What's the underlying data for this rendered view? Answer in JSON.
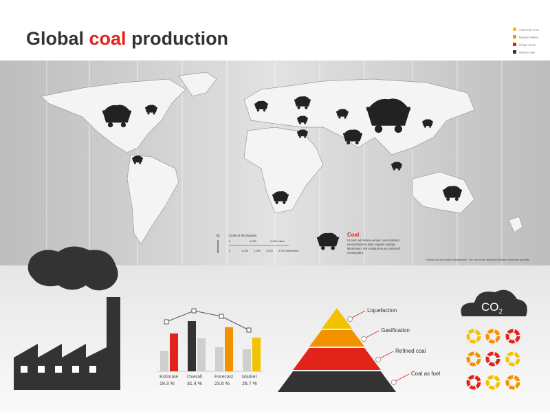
{
  "header": {
    "title": [
      "Global",
      "coal",
      "production"
    ],
    "legend": [
      {
        "color": "#f2c400",
        "label": "Class auto muer"
      },
      {
        "color": "#f39200",
        "label": "Request saltem"
      },
      {
        "color": "#e2231a",
        "label": "Integer ipsum"
      },
      {
        "color": "#333333",
        "label": "Aenean vitae"
      }
    ]
  },
  "map": {
    "north": "N",
    "scale_title": "Scale at the Equator",
    "miles_ticks": [
      "0",
      "1,000",
      "2,000 miles"
    ],
    "km_ticks": [
      "0",
      "1,000",
      "2,000",
      "3,000",
      "4,000 kilometers"
    ],
    "legend_title": "Coal",
    "legend_text": [
      "Ut enim ad minima veniam, quis nostrum",
      "exercitationem ullam corporis suscipit",
      "laboriosam, nisi ut aliquid ex ea commodi",
      "consequatur."
    ],
    "footnote": "Global coal production infographics. The size of the symbols illustrate production quantity."
  },
  "bar_chart": {
    "categories": [
      "Estimate",
      "Overall",
      "Forecast",
      "Market"
    ],
    "percent_labels": [
      "19.3 %",
      "31.4 %",
      "23.6 %",
      "26.7 %"
    ],
    "left_bars": [
      30,
      73,
      35,
      32
    ],
    "left_colors": [
      "#cfcfcf",
      "#333333",
      "#cfcfcf",
      "#cfcfcf"
    ],
    "right_bars": [
      55,
      48,
      64,
      49
    ],
    "right_colors": [
      "#e2231a",
      "#cfcfcf",
      "#f39200",
      "#f2c400"
    ],
    "line": [
      72,
      88,
      80,
      60
    ],
    "ylim": [
      0,
      100
    ]
  },
  "pyramid": {
    "levels": [
      "Liquefaction",
      "Gasification",
      "Refined coal",
      "Coal as fuel"
    ],
    "colors": [
      "#f2c400",
      "#f39200",
      "#e2231a",
      "#333333"
    ]
  },
  "co2": {
    "text": "CO",
    "subscript": "2"
  }
}
